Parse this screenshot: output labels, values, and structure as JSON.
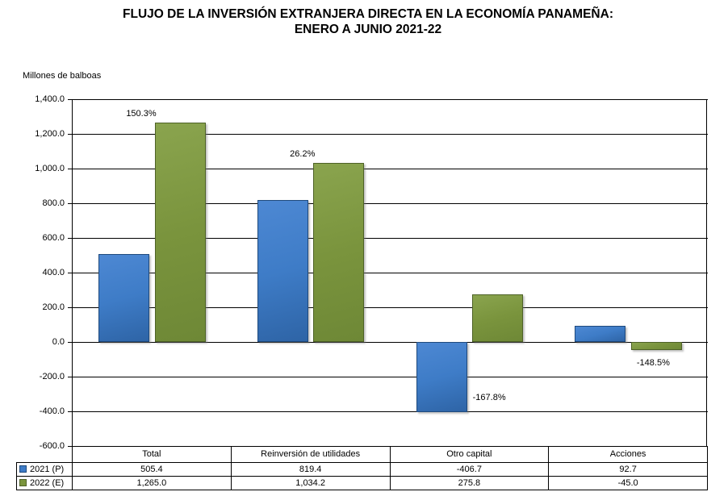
{
  "title": {
    "line1": "FLUJO DE LA INVERSIÓN EXTRANJERA DIRECTA EN LA ECONOMÍA PANAMEÑA:",
    "line2": "ENERO A JUNIO 2021-22"
  },
  "chart_data": {
    "type": "bar",
    "title": "FLUJO DE LA INVERSIÓN EXTRANJERA DIRECTA EN LA ECONOMÍA PANAMEÑA: ENERO A JUNIO 2021-22",
    "ylabel": "Millones de balboas",
    "xlabel": "",
    "categories": [
      "Total",
      "Reinversión de utilidades",
      "Otro capital",
      "Acciones"
    ],
    "series": [
      {
        "name": "2021 (P)",
        "values": [
          505.4,
          819.4,
          -406.7,
          92.7
        ],
        "fill": "#3e7cc7",
        "fill_light": "#4d88d3",
        "fill_dark": "#2e64a6",
        "border": "#1f4a7d"
      },
      {
        "name": "2022 (E)",
        "values": [
          1265.0,
          1034.2,
          275.8,
          -45.0
        ],
        "fill": "#7a943d",
        "fill_light": "#8aa44e",
        "fill_dark": "#6e8836",
        "border": "#4e6227"
      }
    ],
    "annotations": [
      {
        "text": "150.3%",
        "series": 1,
        "category": 0,
        "placement": "above-left"
      },
      {
        "text": "26.2%",
        "series": 1,
        "category": 1,
        "placement": "above-left"
      },
      {
        "text": "-167.8%",
        "series": 0,
        "category": 2,
        "placement": "right-of-bottom"
      },
      {
        "text": "-148.5%",
        "series": 1,
        "category": 3,
        "placement": "below"
      }
    ],
    "ylim": [
      -600,
      1400
    ],
    "ytick_step": 200,
    "grid": true,
    "legend_position": "data-table-left"
  }
}
